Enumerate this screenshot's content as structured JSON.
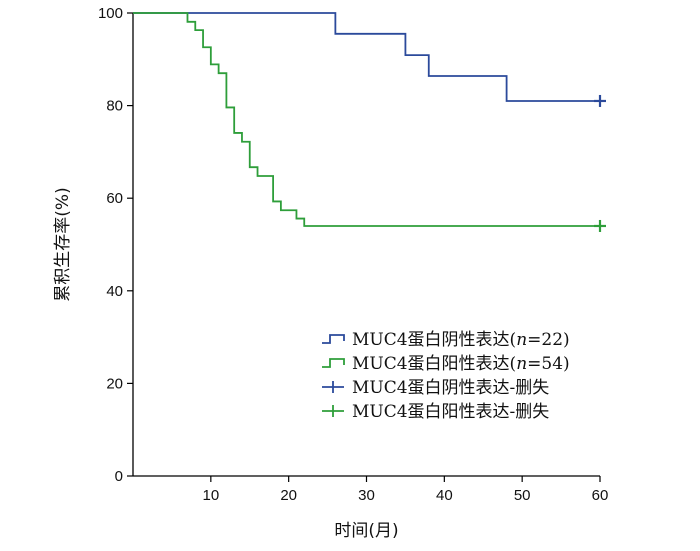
{
  "chart_data": {
    "type": "line",
    "xlabel": "时间(月)",
    "ylabel": "累积生存率(%)",
    "xlim": [
      0,
      60
    ],
    "ylim": [
      0,
      100
    ],
    "xticks": [
      10,
      20,
      30,
      40,
      50,
      60
    ],
    "yticks": [
      0,
      20,
      40,
      60,
      80,
      100
    ],
    "legend_position": "bottom-right",
    "series": [
      {
        "name": "MUC4蛋白阴性表达(n=22)",
        "color": "#2b4a9b",
        "steps": [
          [
            0,
            100
          ],
          [
            26,
            95.5
          ],
          [
            35,
            90.9
          ],
          [
            38,
            86.4
          ],
          [
            48,
            81.0
          ],
          [
            60,
            81.0
          ]
        ],
        "censor": [
          [
            60,
            81.0
          ]
        ]
      },
      {
        "name": "MUC4蛋白阳性表达(n=54)",
        "color": "#2e9e3a",
        "steps": [
          [
            0,
            100
          ],
          [
            7,
            98.1
          ],
          [
            8,
            96.3
          ],
          [
            9,
            92.6
          ],
          [
            10,
            88.9
          ],
          [
            11,
            87.0
          ],
          [
            12,
            79.6
          ],
          [
            13,
            74.1
          ],
          [
            14,
            72.2
          ],
          [
            15,
            66.7
          ],
          [
            16,
            64.8
          ],
          [
            18,
            59.3
          ],
          [
            19,
            57.4
          ],
          [
            21,
            55.6
          ],
          [
            22,
            54.0
          ],
          [
            60,
            54.0
          ]
        ],
        "censor": [
          [
            60,
            54.0
          ]
        ]
      }
    ],
    "legend": [
      {
        "label_prefix": "MUC4蛋白阴性表达(",
        "label_italic": "n",
        "label_suffix": "=22)",
        "symbol": "step",
        "color": "#2b4a9b"
      },
      {
        "label_prefix": "MUC4蛋白阳性表达(",
        "label_italic": "n",
        "label_suffix": "=54)",
        "symbol": "step",
        "color": "#2e9e3a"
      },
      {
        "label_prefix": "MUC4蛋白阴性表达-删失",
        "label_italic": "",
        "label_suffix": "",
        "symbol": "cross",
        "color": "#2b4a9b"
      },
      {
        "label_prefix": "MUC4蛋白阳性表达-删失",
        "label_italic": "",
        "label_suffix": "",
        "symbol": "cross",
        "color": "#2e9e3a"
      }
    ]
  }
}
